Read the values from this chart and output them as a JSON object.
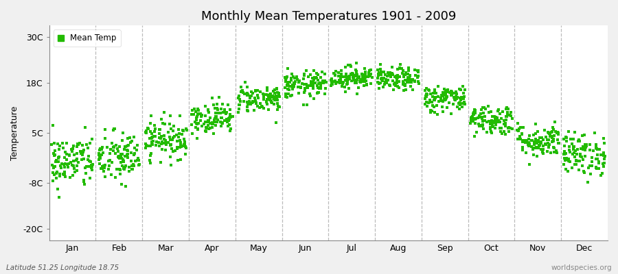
{
  "title": "Monthly Mean Temperatures 1901 - 2009",
  "ylabel": "Temperature",
  "xlabel_labels": [
    "Jan",
    "Feb",
    "Mar",
    "Apr",
    "May",
    "Jun",
    "Jul",
    "Aug",
    "Sep",
    "Oct",
    "Nov",
    "Dec"
  ],
  "ytick_labels": [
    "-20C",
    "-8C",
    "5C",
    "18C",
    "30C"
  ],
  "ytick_values": [
    -20,
    -8,
    5,
    18,
    30
  ],
  "ylim": [
    -23,
    33
  ],
  "xlim": [
    0.0,
    12.0
  ],
  "legend_label": "Mean Temp",
  "dot_color": "#22bb00",
  "fig_bg_color": "#f0f0f0",
  "plot_bg_color": "#ffffff",
  "footer_left": "Latitude 51.25 Longitude 18.75",
  "footer_right": "worldspecies.org",
  "monthly_means": [
    -2.5,
    -1.5,
    3.5,
    9.0,
    14.0,
    17.5,
    19.5,
    19.0,
    14.0,
    8.5,
    3.0,
    -0.5
  ],
  "monthly_stds": [
    3.5,
    3.5,
    2.5,
    2.0,
    1.8,
    1.8,
    1.5,
    1.5,
    1.8,
    2.0,
    2.2,
    2.8
  ],
  "n_years": 109,
  "seed": 42
}
